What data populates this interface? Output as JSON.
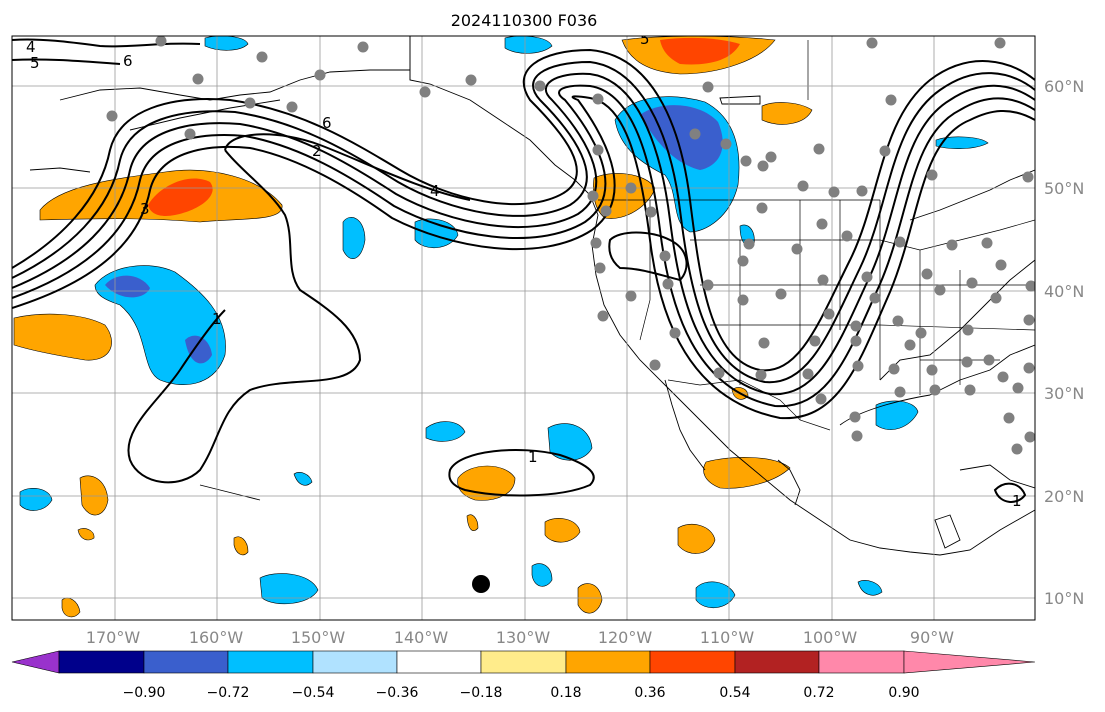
{
  "title": "2024110300 F036",
  "map": {
    "lon_ticks": [
      "170°W",
      "160°W",
      "150°W",
      "140°W",
      "130°W",
      "120°W",
      "110°W",
      "100°W",
      "90°W"
    ],
    "lat_ticks": [
      "10°N",
      "20°N",
      "30°N",
      "40°N",
      "50°N",
      "60°N"
    ],
    "contour_labels": [
      "4",
      "5",
      "6",
      "6",
      "2",
      "4",
      "3",
      "1",
      "1",
      "5",
      "1"
    ]
  },
  "colorbar": {
    "tick_labels": [
      "−0.90",
      "−0.72",
      "−0.54",
      "−0.36",
      "−0.18",
      "0.18",
      "0.36",
      "0.54",
      "0.72",
      "0.90"
    ],
    "colors": [
      "#9932cc",
      "#00008b",
      "#3a5fcd",
      "#00bfff",
      "#b0e2ff",
      "#ffffff",
      "#ffec8b",
      "#ffa500",
      "#ff4500",
      "#b22222",
      "#ff88aa"
    ]
  }
}
